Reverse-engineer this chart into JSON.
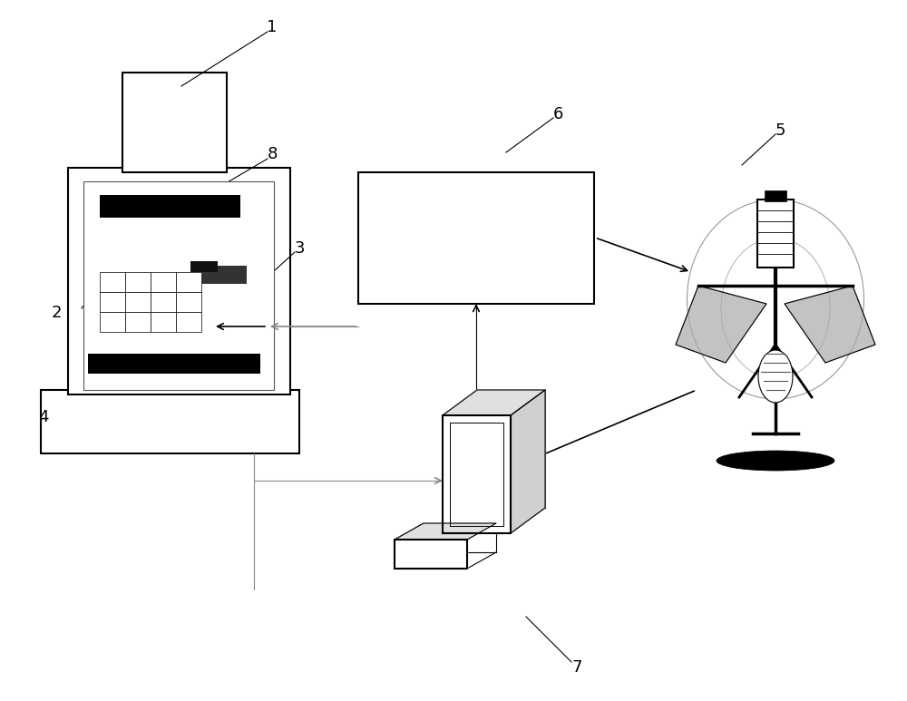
{
  "bg_color": "#ffffff",
  "line_color": "#000000",
  "lw_main": 1.5,
  "lw_thin": 0.8,
  "lw_arrow": 1.2,
  "label_fs": 13
}
